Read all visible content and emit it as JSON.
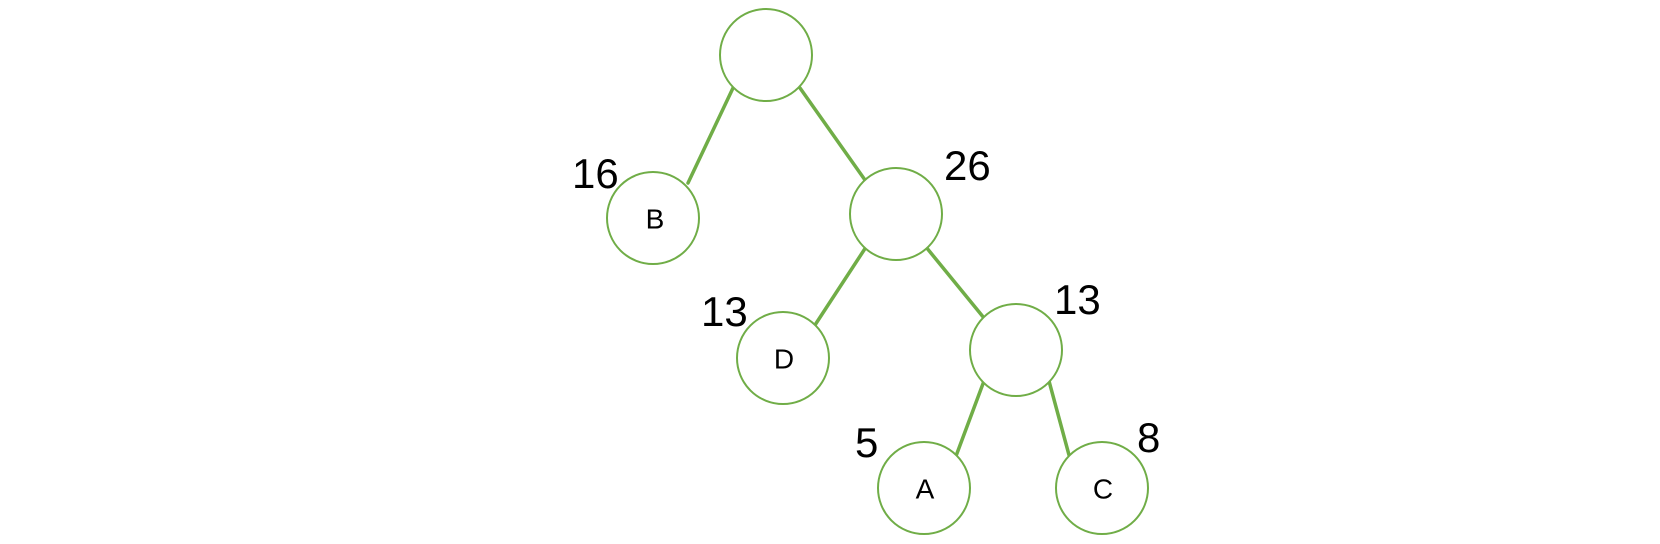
{
  "tree": {
    "nodes": {
      "root": {
        "label": "",
        "weight": ""
      },
      "b": {
        "label": "B",
        "weight": "16"
      },
      "n26": {
        "label": "",
        "weight": "26"
      },
      "d": {
        "label": "D",
        "weight": "13"
      },
      "n13": {
        "label": "",
        "weight": "13"
      },
      "a": {
        "label": "A",
        "weight": "5"
      },
      "c": {
        "label": "C",
        "weight": "8"
      }
    },
    "edges": [
      [
        "root",
        "b"
      ],
      [
        "root",
        "n26"
      ],
      [
        "n26",
        "d"
      ],
      [
        "n26",
        "n13"
      ],
      [
        "n13",
        "a"
      ],
      [
        "n13",
        "c"
      ]
    ],
    "colors": {
      "edge": "#70ad47",
      "node_border": "#70ad47",
      "text": "#000000"
    }
  }
}
